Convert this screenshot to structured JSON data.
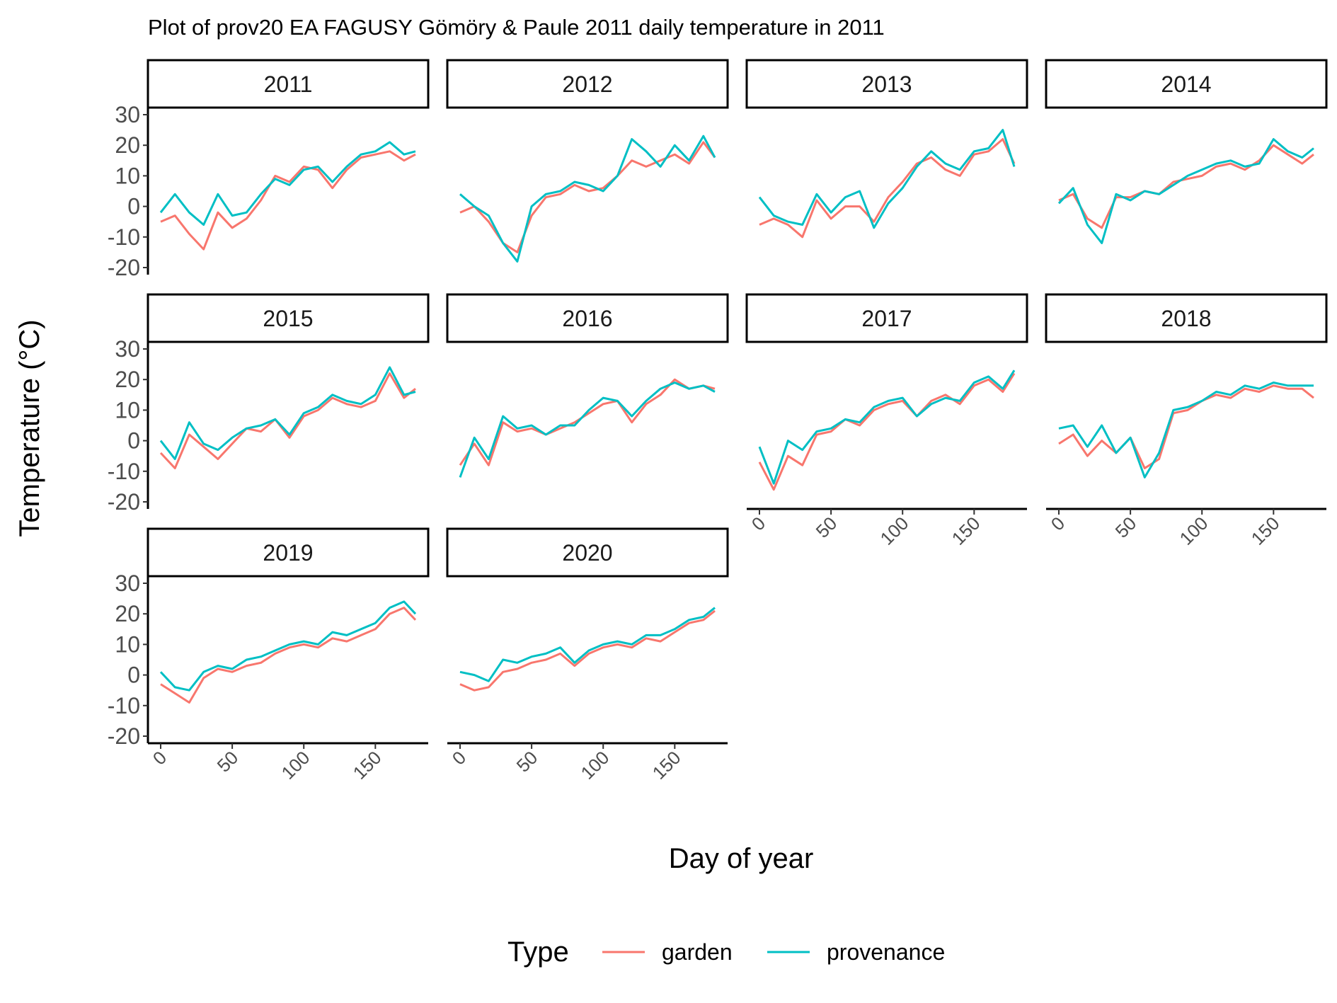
{
  "chart_data": {
    "type": "line",
    "title": "Plot of prov20 EA FAGUSY Gömöry & Paule 2011 daily temperature in 2011",
    "xlabel": "Day of year",
    "ylabel": "Temperature (°C)",
    "xlim": [
      0,
      180
    ],
    "ylim": [
      -20,
      30
    ],
    "x_ticks": [
      0,
      50,
      100,
      150
    ],
    "x_tick_labels": [
      "0",
      "50",
      "100",
      "150"
    ],
    "y_ticks": [
      -20,
      -10,
      0,
      10,
      20,
      30
    ],
    "y_tick_labels": [
      "-20",
      "-10",
      "0",
      "10",
      "20",
      "30"
    ],
    "x_sample_days": [
      0,
      10,
      20,
      30,
      40,
      50,
      60,
      70,
      80,
      90,
      100,
      110,
      120,
      130,
      140,
      150,
      160,
      170,
      178
    ],
    "legend": {
      "title": "Type",
      "position": "bottom",
      "entries": [
        {
          "name": "garden",
          "color": "#F8766D"
        },
        {
          "name": "provenance",
          "color": "#00BFC4"
        }
      ]
    },
    "facets": [
      {
        "label": "2011",
        "garden": [
          -5,
          -3,
          -9,
          -14,
          -2,
          -7,
          -4,
          2,
          10,
          8,
          13,
          12,
          6,
          12,
          16,
          17,
          18,
          15,
          17
        ],
        "provenance": [
          -2,
          4,
          -2,
          -6,
          4,
          -3,
          -2,
          4,
          9,
          7,
          12,
          13,
          8,
          13,
          17,
          18,
          21,
          17,
          18
        ]
      },
      {
        "label": "2012",
        "garden": [
          -2,
          0,
          -5,
          -12,
          -15,
          -3,
          3,
          4,
          7,
          5,
          6,
          10,
          15,
          13,
          15,
          17,
          14,
          21,
          16
        ],
        "provenance": [
          4,
          0,
          -3,
          -12,
          -18,
          0,
          4,
          5,
          8,
          7,
          5,
          10,
          22,
          18,
          13,
          20,
          15,
          23,
          16
        ]
      },
      {
        "label": "2013",
        "garden": [
          -6,
          -4,
          -6,
          -10,
          2,
          -4,
          0,
          0,
          -5,
          3,
          8,
          14,
          16,
          12,
          10,
          17,
          18,
          22,
          14
        ],
        "provenance": [
          3,
          -3,
          -5,
          -6,
          4,
          -2,
          3,
          5,
          -7,
          1,
          6,
          13,
          18,
          14,
          12,
          18,
          19,
          25,
          13
        ]
      },
      {
        "label": "2014",
        "garden": [
          2,
          4,
          -4,
          -7,
          3,
          3,
          5,
          4,
          8,
          9,
          10,
          13,
          14,
          12,
          15,
          20,
          17,
          14,
          17
        ],
        "provenance": [
          1,
          6,
          -6,
          -12,
          4,
          2,
          5,
          4,
          7,
          10,
          12,
          14,
          15,
          13,
          14,
          22,
          18,
          16,
          19
        ]
      },
      {
        "label": "2015",
        "garden": [
          -4,
          -9,
          2,
          -2,
          -6,
          -1,
          4,
          3,
          7,
          1,
          8,
          10,
          14,
          12,
          11,
          13,
          22,
          14,
          17
        ],
        "provenance": [
          0,
          -6,
          6,
          -1,
          -3,
          1,
          4,
          5,
          7,
          2,
          9,
          11,
          15,
          13,
          12,
          15,
          24,
          15,
          16
        ]
      },
      {
        "label": "2016",
        "garden": [
          -8,
          -1,
          -8,
          6,
          3,
          4,
          2,
          4,
          6,
          9,
          12,
          13,
          6,
          12,
          15,
          20,
          17,
          18,
          17
        ],
        "provenance": [
          -12,
          1,
          -6,
          8,
          4,
          5,
          2,
          5,
          5,
          10,
          14,
          13,
          8,
          13,
          17,
          19,
          17,
          18,
          16
        ]
      },
      {
        "label": "2017",
        "garden": [
          -7,
          -16,
          -5,
          -8,
          2,
          3,
          7,
          5,
          10,
          12,
          13,
          8,
          13,
          15,
          12,
          18,
          20,
          16,
          22
        ],
        "provenance": [
          -2,
          -14,
          0,
          -3,
          3,
          4,
          7,
          6,
          11,
          13,
          14,
          8,
          12,
          14,
          13,
          19,
          21,
          17,
          23
        ]
      },
      {
        "label": "2018",
        "garden": [
          -1,
          2,
          -5,
          0,
          -4,
          1,
          -9,
          -6,
          9,
          10,
          13,
          15,
          14,
          17,
          16,
          18,
          17,
          17,
          14
        ],
        "provenance": [
          4,
          5,
          -2,
          5,
          -4,
          1,
          -12,
          -4,
          10,
          11,
          13,
          16,
          15,
          18,
          17,
          19,
          18,
          18,
          18
        ]
      },
      {
        "label": "2019",
        "garden": [
          -3,
          -6,
          -9,
          -1,
          2,
          1,
          3,
          4,
          7,
          9,
          10,
          9,
          12,
          11,
          13,
          15,
          20,
          22,
          18
        ],
        "provenance": [
          1,
          -4,
          -5,
          1,
          3,
          2,
          5,
          6,
          8,
          10,
          11,
          10,
          14,
          13,
          15,
          17,
          22,
          24,
          20
        ]
      },
      {
        "label": "2020",
        "garden": [
          -3,
          -5,
          -4,
          1,
          2,
          4,
          5,
          7,
          3,
          7,
          9,
          10,
          9,
          12,
          11,
          14,
          17,
          18,
          21
        ],
        "provenance": [
          1,
          0,
          -2,
          5,
          4,
          6,
          7,
          9,
          4,
          8,
          10,
          11,
          10,
          13,
          13,
          15,
          18,
          19,
          22
        ]
      }
    ]
  }
}
